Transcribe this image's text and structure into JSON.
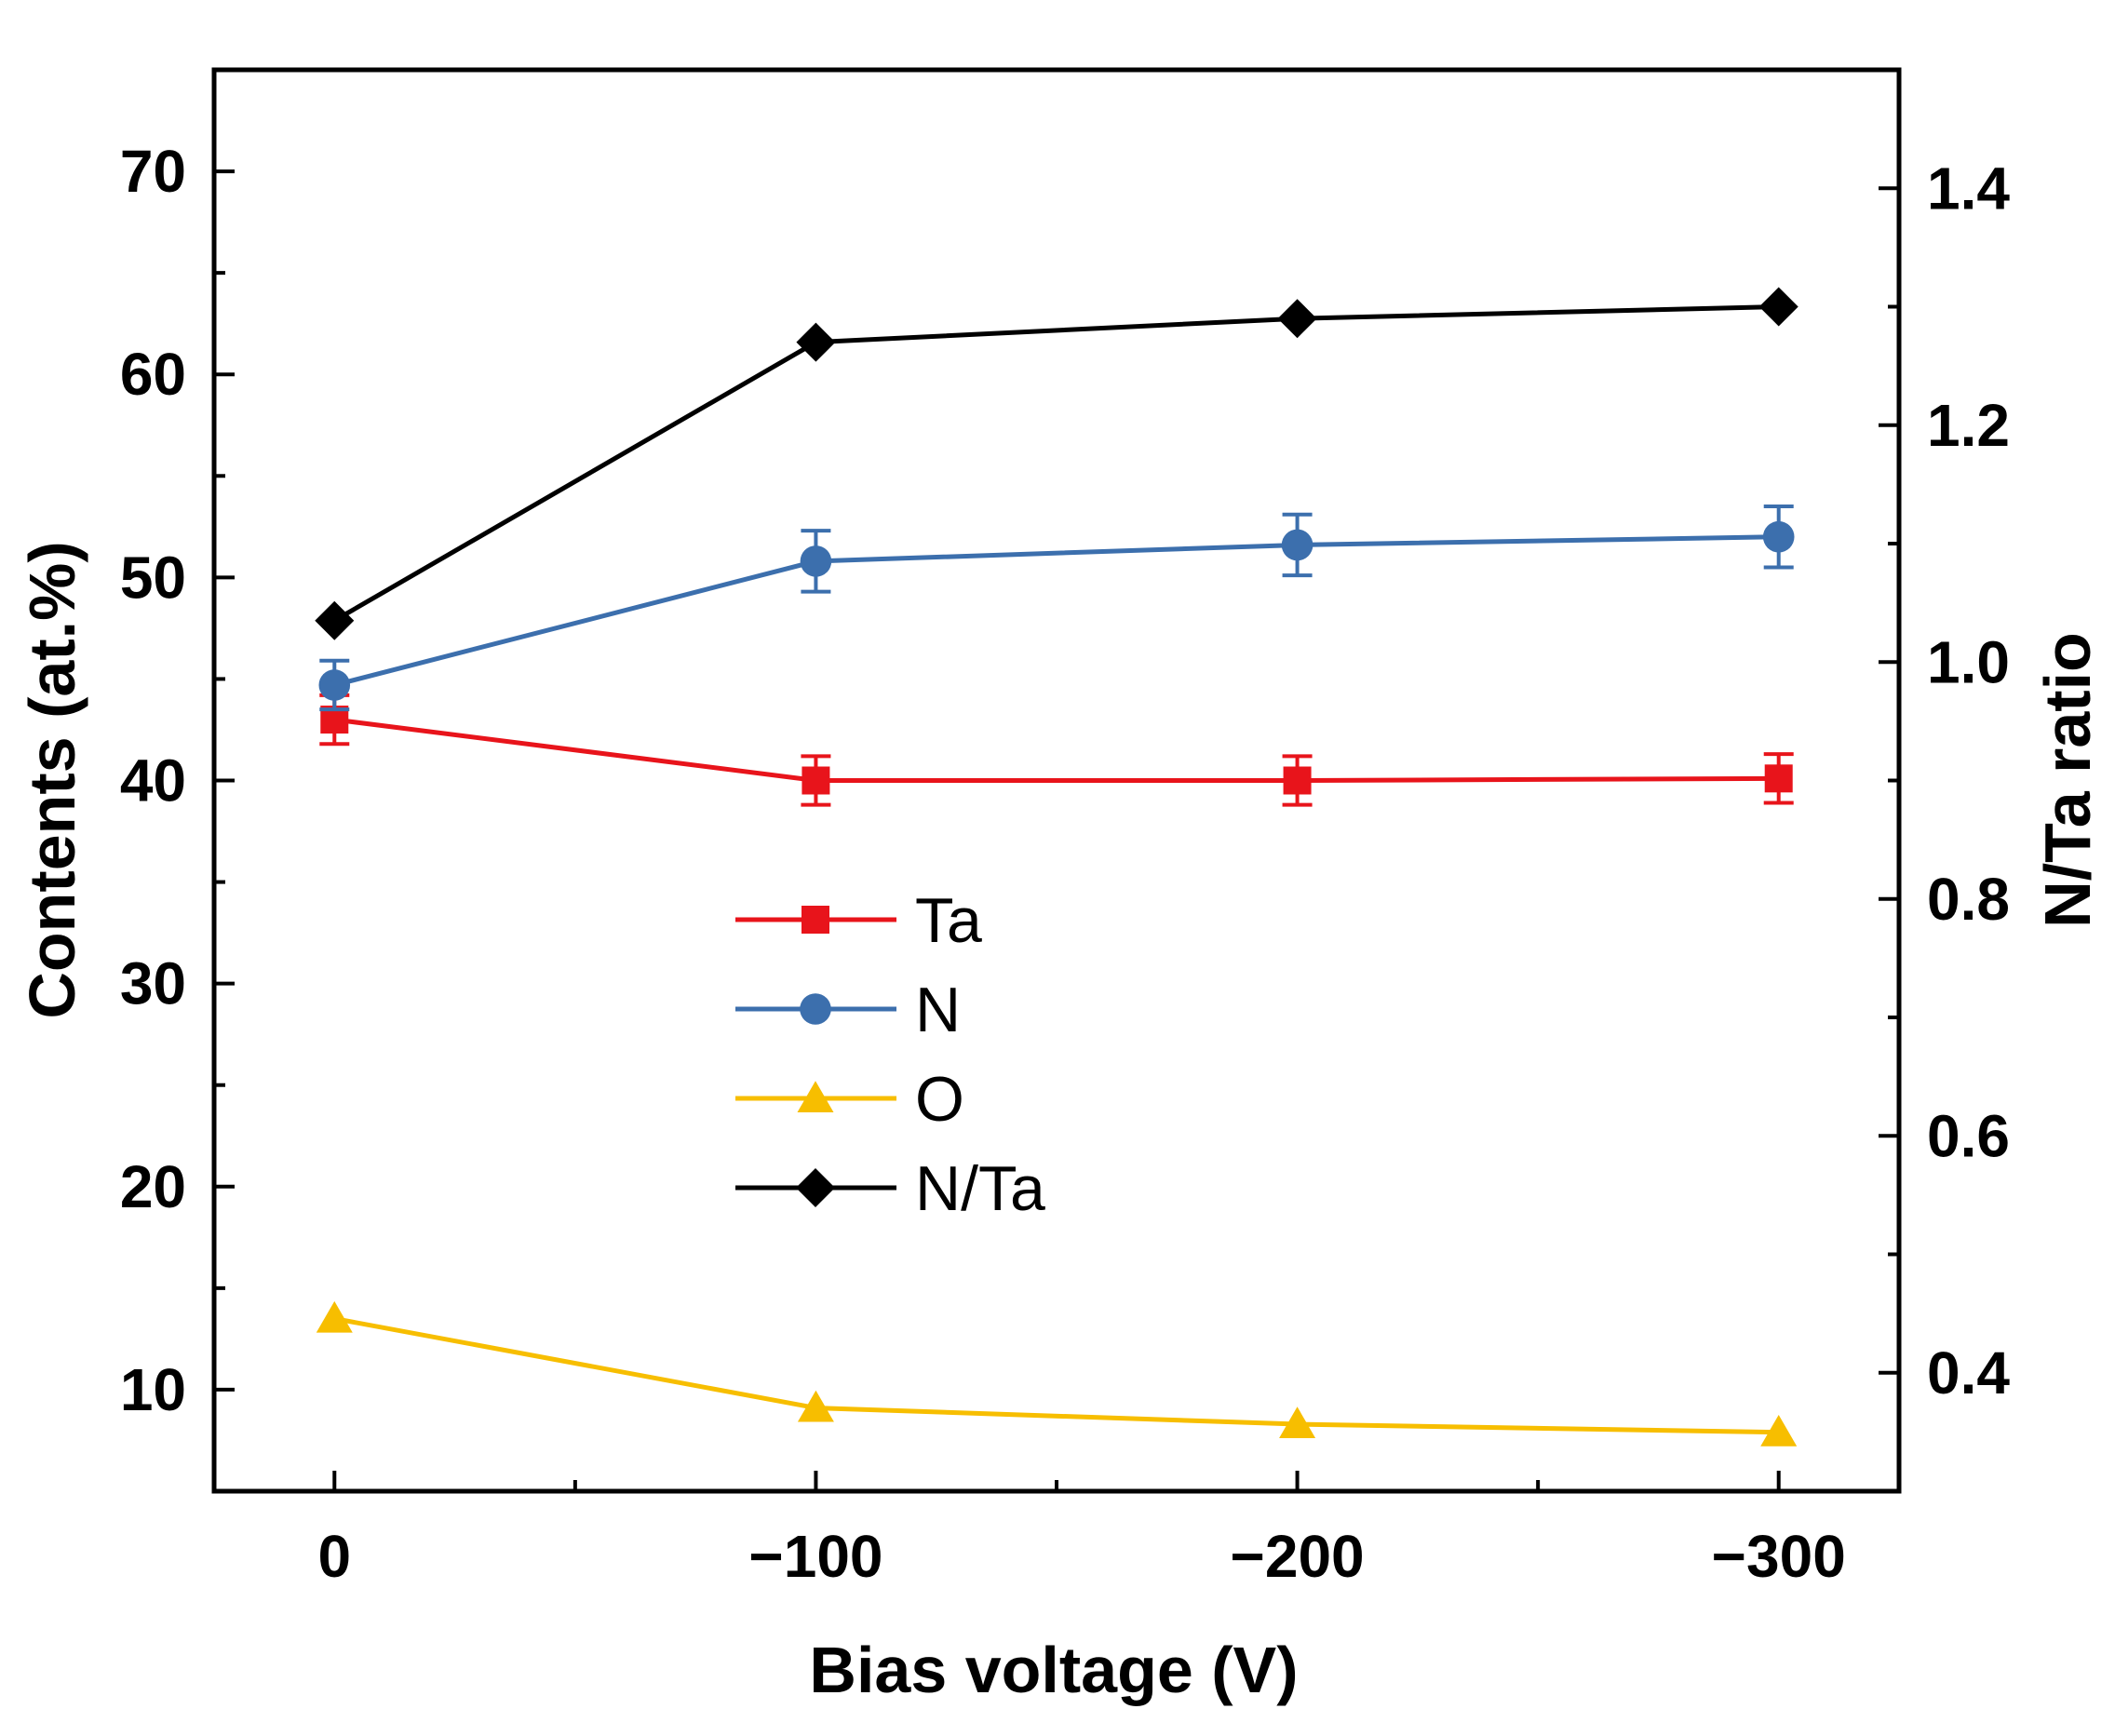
{
  "chart_data": {
    "type": "line",
    "title": "",
    "xlabel": "Bias voltage (V)",
    "ylabel_left": "Contents (at.%)",
    "ylabel_right": "N/Ta ratio",
    "categories": [
      "0",
      "−100",
      "−200",
      "−300"
    ],
    "x": [
      0,
      -100,
      -200,
      -300
    ],
    "xlim": [
      25,
      -325
    ],
    "ylim_left": [
      5,
      75
    ],
    "ylim_right": [
      0.3,
      1.5
    ],
    "yticks_left": [
      10,
      20,
      30,
      40,
      50,
      60,
      70
    ],
    "yticks_left_labels": [
      "10",
      "20",
      "30",
      "40",
      "50",
      "60",
      "70"
    ],
    "yticks_right": [
      0.4,
      0.6,
      0.8,
      1.0,
      1.2,
      1.4
    ],
    "yticks_right_labels": [
      "0.4",
      "0.6",
      "0.8",
      "1.0",
      "1.2",
      "1.4"
    ],
    "grid": false,
    "legend_position": "center",
    "series": [
      {
        "name": "Ta",
        "axis": "left",
        "marker": "square",
        "color": "#e8141b",
        "values": [
          43.0,
          40.0,
          40.0,
          40.1
        ],
        "errors": [
          1.2,
          1.2,
          1.2,
          1.2
        ]
      },
      {
        "name": "N",
        "axis": "left",
        "marker": "circle",
        "color": "#3c6fad",
        "values": [
          44.7,
          50.8,
          51.6,
          52.0
        ],
        "errors": [
          1.2,
          1.5,
          1.5,
          1.5
        ]
      },
      {
        "name": "O",
        "axis": "left",
        "marker": "triangle",
        "color": "#f7be00",
        "values": [
          13.5,
          9.1,
          8.3,
          7.9
        ],
        "errors": [
          0,
          0,
          0,
          0
        ]
      },
      {
        "name": "N/Ta",
        "axis": "right",
        "marker": "diamond",
        "color": "#000000",
        "values": [
          1.035,
          1.27,
          1.29,
          1.3
        ],
        "errors": [
          0,
          0,
          0,
          0
        ]
      }
    ]
  }
}
